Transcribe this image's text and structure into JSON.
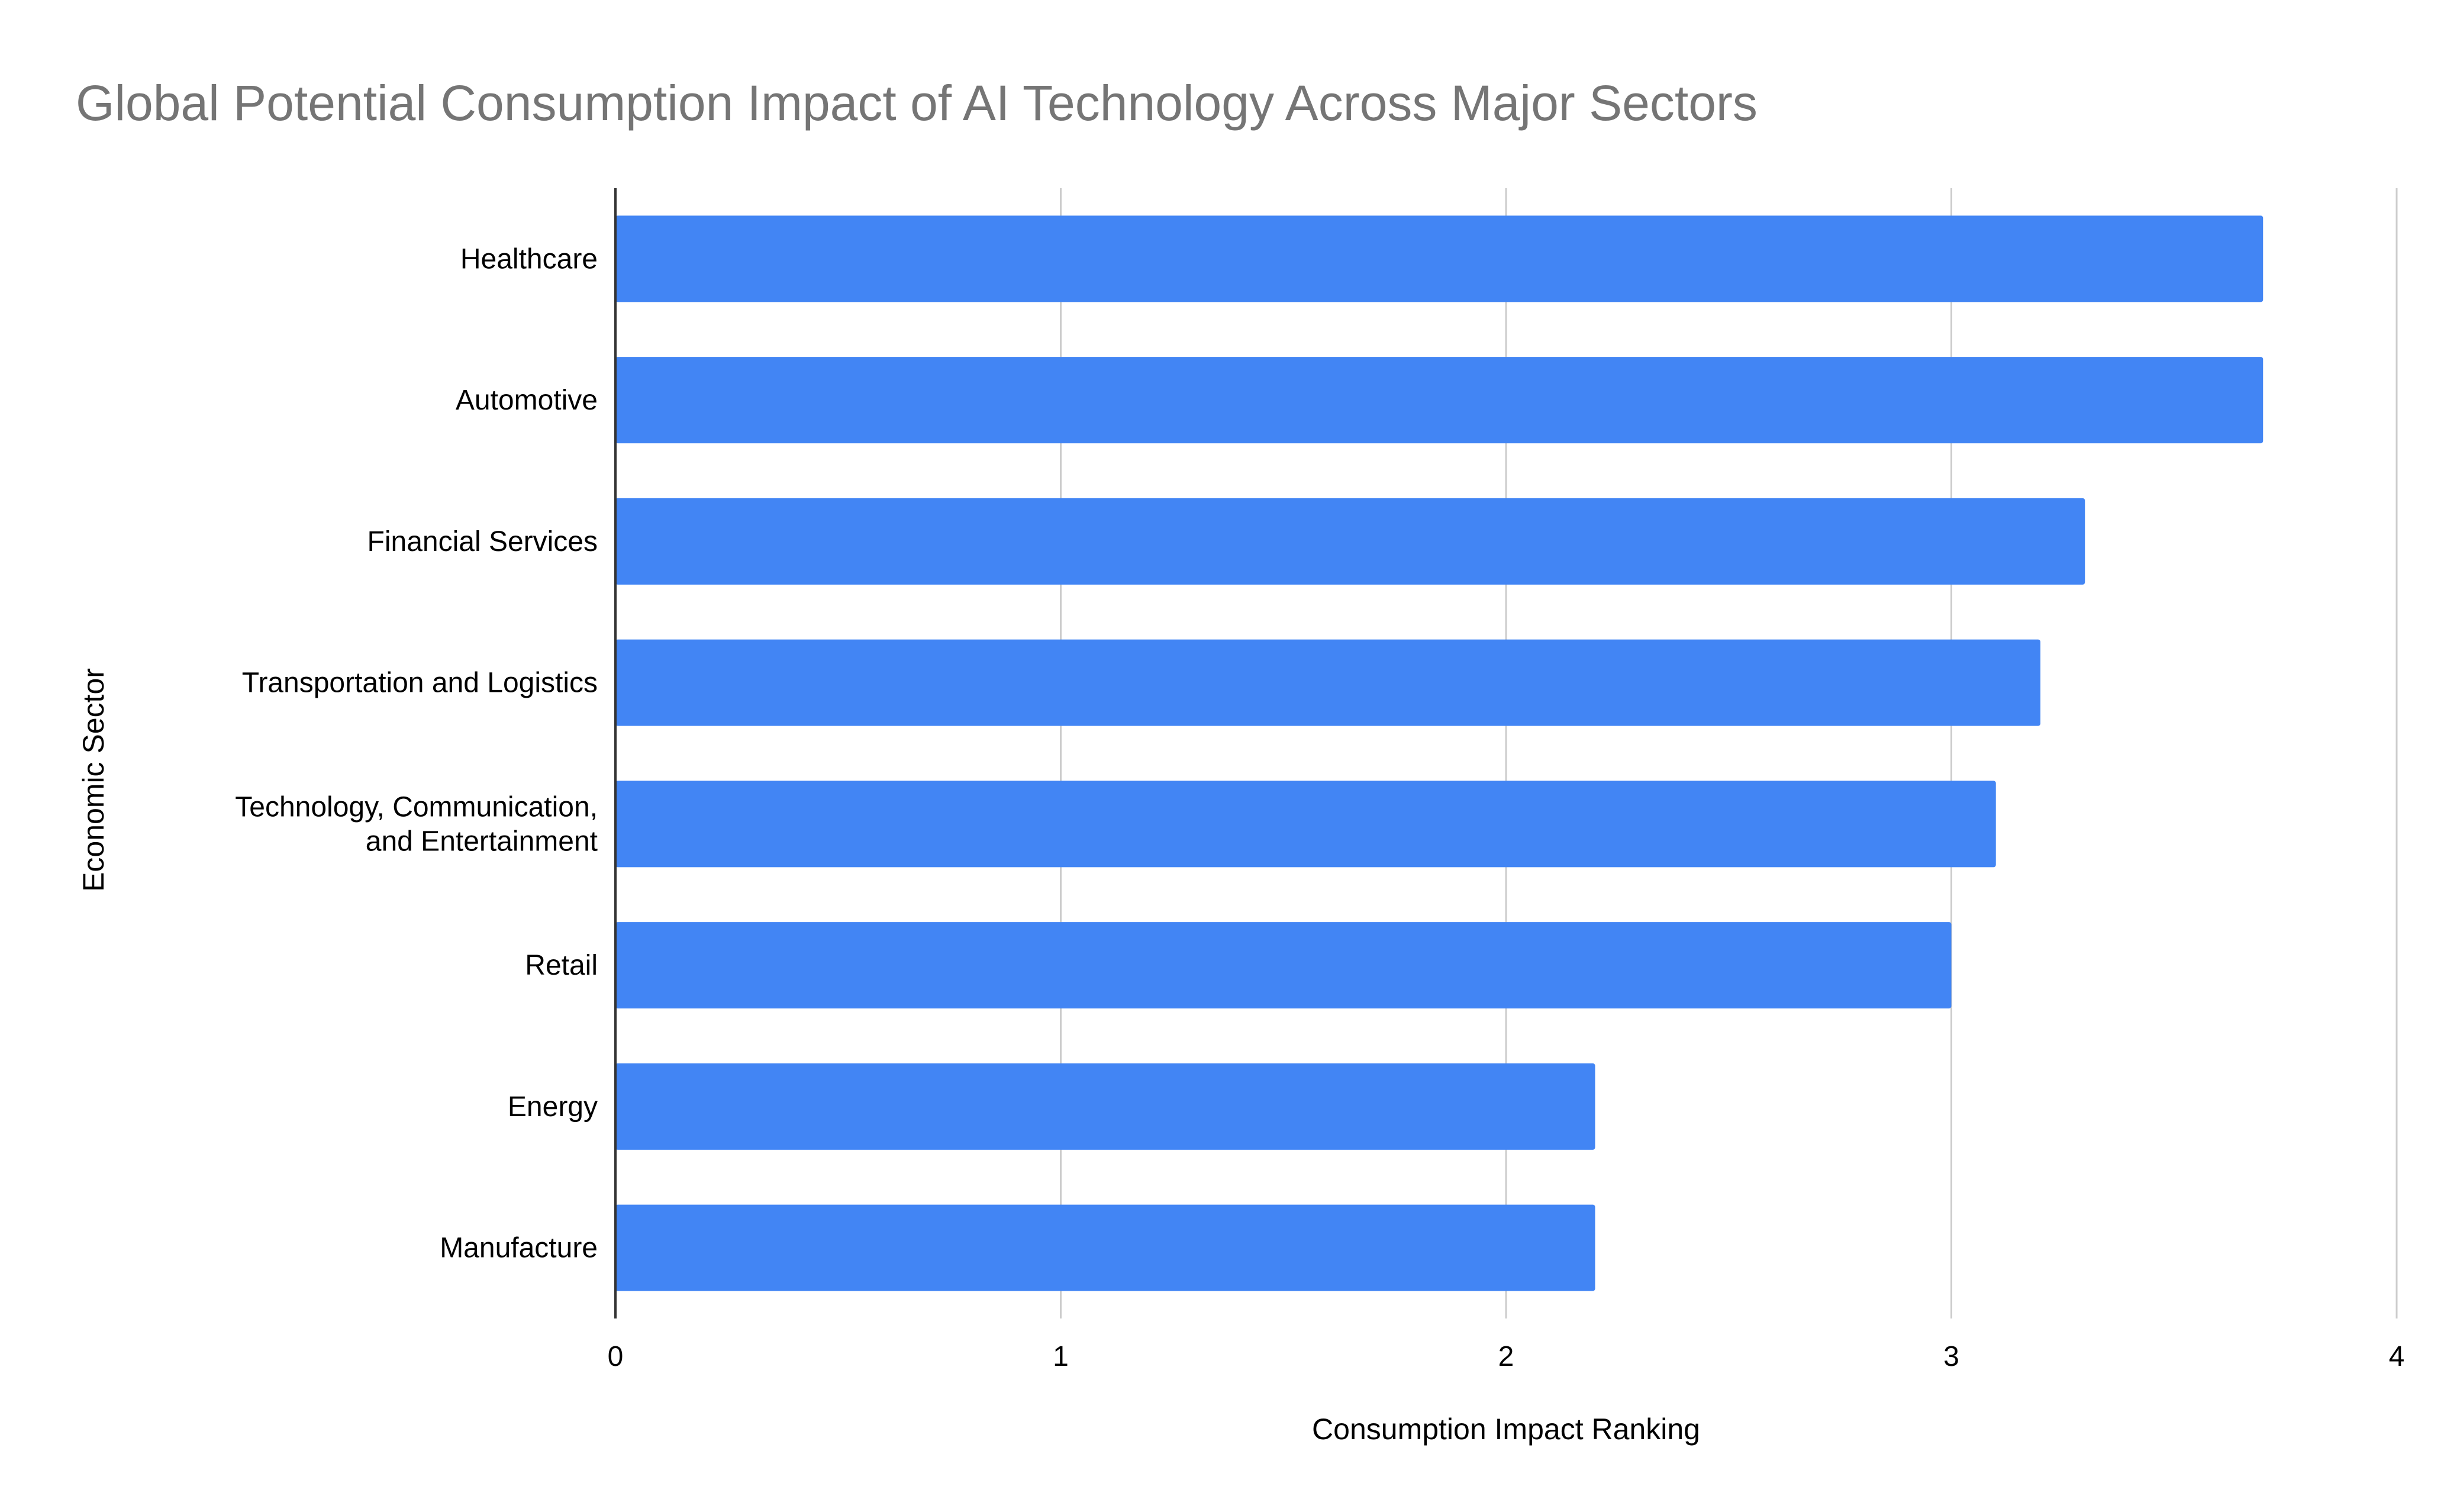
{
  "colors": {
    "bar": "#4285f4",
    "grid": "#cccccc",
    "axis": "#333333",
    "title": "#757575",
    "text": "#000000"
  },
  "chart_data": {
    "type": "bar",
    "orientation": "horizontal",
    "title": "Global Potential Consumption Impact of AI Technology Across Major Sectors",
    "xlabel": "Consumption Impact Ranking",
    "ylabel": "Economic Sector",
    "categories": [
      "Healthcare",
      "Automotive",
      "Financial Services",
      "Transportation and Logistics",
      "Technology, Communication, and Entertainment",
      "Retail",
      "Energy",
      "Manufacture"
    ],
    "category_label_lines": [
      [
        "Healthcare"
      ],
      [
        "Automotive"
      ],
      [
        "Financial Services"
      ],
      [
        "Transportation and Logistics"
      ],
      [
        "Technology, Communication,",
        "and Entertainment"
      ],
      [
        "Retail"
      ],
      [
        "Energy"
      ],
      [
        "Manufacture"
      ]
    ],
    "values": [
      3.7,
      3.7,
      3.3,
      3.2,
      3.1,
      3.0,
      2.2,
      2.2
    ],
    "xlim": [
      0,
      4
    ],
    "xticks": [
      "0",
      "1",
      "2",
      "3",
      "4"
    ],
    "grid": true,
    "legend": "none"
  }
}
